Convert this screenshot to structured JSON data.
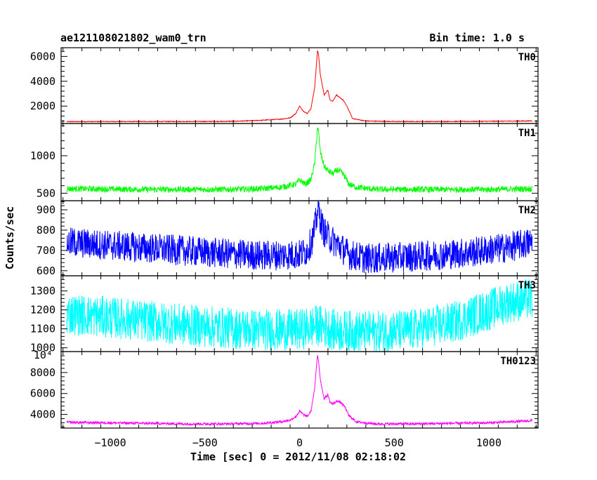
{
  "header": {
    "title": "ae121108021802_wam0_trn",
    "bin_time": "Bin time: 1.0 s"
  },
  "chart_data": {
    "type": "line",
    "title": "ae121108021802_wam0_trn",
    "subtitle": "Bin time: 1.0 s",
    "xlabel": "Time [sec] 0 = 2012/11/08 02:18:02",
    "ylabel": "Counts/sec",
    "xlim": [
      -1260,
      1260
    ],
    "x_ticks": [
      -1000,
      -500,
      0,
      500,
      1000
    ],
    "x_tick_labels": [
      "−1000",
      "−500",
      "0",
      "500",
      "1000"
    ],
    "grid": false,
    "panels": [
      {
        "name": "TH0",
        "color": "#ff0000",
        "ylim": [
          600,
          6700
        ],
        "y_ticks": [
          2000,
          4000,
          6000
        ],
        "y_tick_labels": [
          "2000",
          "4000",
          "6000"
        ],
        "noise": 30,
        "x": [
          -1230,
          -1000,
          -800,
          -600,
          -400,
          -300,
          -200,
          -100,
          -50,
          -20,
          0,
          20,
          40,
          60,
          80,
          95,
          100,
          110,
          130,
          150,
          160,
          175,
          195,
          210,
          230,
          250,
          280,
          350,
          500,
          700,
          900,
          1100,
          1230
        ],
        "values": [
          750,
          760,
          760,
          760,
          770,
          800,
          860,
          950,
          1050,
          1400,
          2000,
          1600,
          1400,
          1800,
          3500,
          6500,
          6200,
          4500,
          2900,
          3300,
          2500,
          2400,
          2900,
          2700,
          2500,
          2000,
          1000,
          800,
          760,
          760,
          770,
          790,
          810
        ]
      },
      {
        "name": "TH1",
        "color": "#00ff00",
        "ylim": [
          400,
          1430
        ],
        "y_ticks": [
          500,
          1000
        ],
        "y_tick_labels": [
          "500",
          "1000"
        ],
        "noise": 40,
        "x": [
          -1230,
          -800,
          -400,
          -200,
          -100,
          -20,
          0,
          30,
          60,
          80,
          95,
          100,
          110,
          130,
          150,
          175,
          200,
          220,
          240,
          260,
          300,
          400,
          700,
          1000,
          1230
        ],
        "values": [
          560,
          550,
          550,
          560,
          580,
          620,
          680,
          620,
          680,
          900,
          1380,
          1320,
          1050,
          860,
          800,
          760,
          810,
          780,
          720,
          620,
          580,
          550,
          550,
          550,
          560
        ]
      },
      {
        "name": "TH2",
        "color": "#0000ff",
        "ylim": [
          575,
          945
        ],
        "y_ticks": [
          600,
          700,
          800,
          900
        ],
        "y_tick_labels": [
          "600",
          "700",
          "800",
          "900"
        ],
        "noise": 75,
        "x": [
          -1230,
          -1000,
          -700,
          -400,
          -200,
          0,
          40,
          70,
          90,
          100,
          110,
          130,
          160,
          200,
          260,
          350,
          500,
          700,
          900,
          1100,
          1230
        ],
        "values": [
          740,
          725,
          705,
          685,
          675,
          680,
          700,
          760,
          860,
          910,
          850,
          790,
          760,
          730,
          680,
          660,
          665,
          675,
          690,
          715,
          740
        ]
      },
      {
        "name": "TH3",
        "color": "#00ffff",
        "ylim": [
          980,
          1380
        ],
        "y_ticks": [
          1000,
          1100,
          1200,
          1300
        ],
        "y_tick_labels": [
          "1000",
          "1100",
          "1200",
          "1300"
        ],
        "noise": 110,
        "x": [
          -1230,
          -1000,
          -800,
          -600,
          -400,
          -200,
          0,
          100,
          200,
          400,
          600,
          800,
          1000,
          1100,
          1230
        ],
        "values": [
          1180,
          1160,
          1140,
          1120,
          1105,
          1095,
          1095,
          1120,
          1090,
          1085,
          1095,
          1130,
          1200,
          1240,
          1260
        ]
      },
      {
        "name": "TH0123",
        "color": "#ff00ff",
        "ylim": [
          2700,
          10000
        ],
        "y_ticks": [
          4000,
          6000,
          8000
        ],
        "y_tick_labels": [
          "4000",
          "6000",
          "8000"
        ],
        "top_label": "10⁴",
        "noise": 120,
        "x": [
          -1230,
          -1000,
          -800,
          -600,
          -400,
          -200,
          -100,
          -50,
          -20,
          0,
          20,
          40,
          60,
          80,
          95,
          100,
          110,
          130,
          150,
          160,
          175,
          200,
          220,
          240,
          260,
          300,
          400,
          600,
          800,
          1000,
          1230
        ],
        "values": [
          3250,
          3200,
          3150,
          3100,
          3100,
          3150,
          3300,
          3450,
          3800,
          4300,
          4000,
          3800,
          4300,
          6500,
          9700,
          9200,
          7300,
          5500,
          5900,
          5200,
          5000,
          5300,
          5100,
          4700,
          3900,
          3300,
          3100,
          3100,
          3150,
          3200,
          3400
        ]
      }
    ]
  }
}
